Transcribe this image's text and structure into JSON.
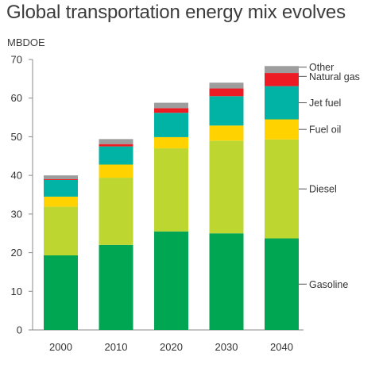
{
  "chart_data": {
    "type": "bar",
    "stacked": true,
    "title": "Global transportation energy mix evolves",
    "unit": "MBDOE",
    "categories": [
      "2000",
      "2010",
      "2020",
      "2030",
      "2040"
    ],
    "series": [
      {
        "name": "Gasoline",
        "color": "#00a651",
        "values": [
          19.3,
          22.0,
          25.5,
          25.0,
          23.7
        ]
      },
      {
        "name": "Diesel",
        "color": "#bed630",
        "values": [
          12.6,
          17.4,
          21.5,
          24.0,
          25.6
        ]
      },
      {
        "name": "Fuel oil",
        "color": "#ffd200",
        "values": [
          2.6,
          3.4,
          2.9,
          3.9,
          5.2
        ]
      },
      {
        "name": "Jet fuel",
        "color": "#00b3a4",
        "values": [
          4.3,
          4.7,
          6.3,
          7.6,
          8.6
        ]
      },
      {
        "name": "Natural gas",
        "color": "#ed1c24",
        "values": [
          0.2,
          0.6,
          1.2,
          2.0,
          3.4
        ]
      },
      {
        "name": "Other",
        "color": "#9d9d9d",
        "values": [
          1.0,
          1.3,
          1.4,
          1.5,
          1.8
        ]
      }
    ],
    "ylim": [
      0,
      70
    ],
    "yticks": [
      0,
      10,
      20,
      30,
      40,
      50,
      60,
      70
    ],
    "grid": false,
    "legend": "right-of-last-bar"
  }
}
